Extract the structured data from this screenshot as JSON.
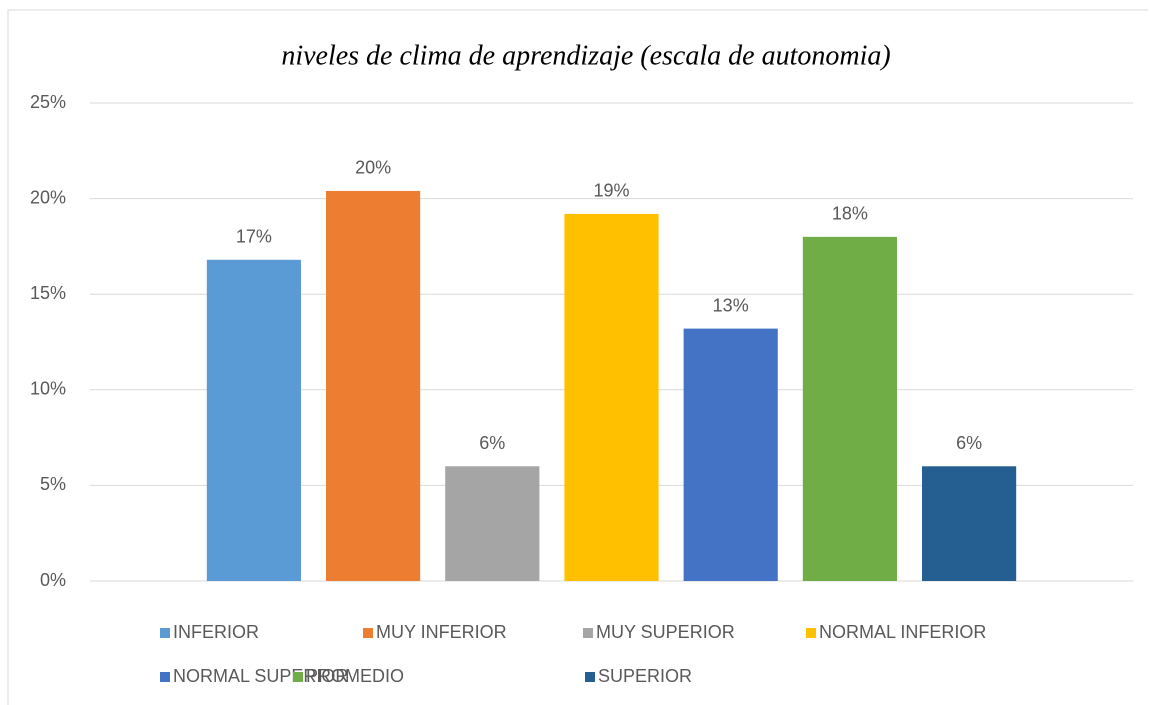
{
  "chart_data": {
    "type": "bar",
    "title": "niveles de clima de aprendizaje (escala de autonomia)",
    "categories": [
      null
    ],
    "series": [
      {
        "name": "INFERIOR",
        "color": "#5b9bd5",
        "values": [
          16.8
        ],
        "value_labels": [
          "17%"
        ]
      },
      {
        "name": "MUY INFERIOR",
        "color": "#ed7d31",
        "values": [
          20.4
        ],
        "value_labels": [
          "20%"
        ]
      },
      {
        "name": "MUY SUPERIOR",
        "color": "#a5a5a5",
        "values": [
          6.0
        ],
        "value_labels": [
          "6%"
        ]
      },
      {
        "name": "NORMAL INFERIOR",
        "color": "#ffc000",
        "values": [
          19.2
        ],
        "value_labels": [
          "19%"
        ]
      },
      {
        "name": "NORMAL SUPERIOR",
        "color": "#4472c4",
        "values": [
          13.2
        ],
        "value_labels": [
          "13%"
        ]
      },
      {
        "name": "PROMEDIO",
        "color": "#70ad47",
        "values": [
          18.0
        ],
        "value_labels": [
          "18%"
        ]
      },
      {
        "name": "SUPERIOR",
        "color": "#255e91",
        "values": [
          6.0
        ],
        "value_labels": [
          "6%"
        ]
      }
    ],
    "ylim": [
      0,
      25
    ],
    "yticks": [
      {
        "value": 0,
        "label": "0%"
      },
      {
        "value": 5,
        "label": "5%"
      },
      {
        "value": 10,
        "label": "10%"
      },
      {
        "value": 15,
        "label": "15%"
      },
      {
        "value": 20,
        "label": "20%"
      },
      {
        "value": 25,
        "label": "25%"
      }
    ],
    "grid": true,
    "legend": "bottom"
  }
}
